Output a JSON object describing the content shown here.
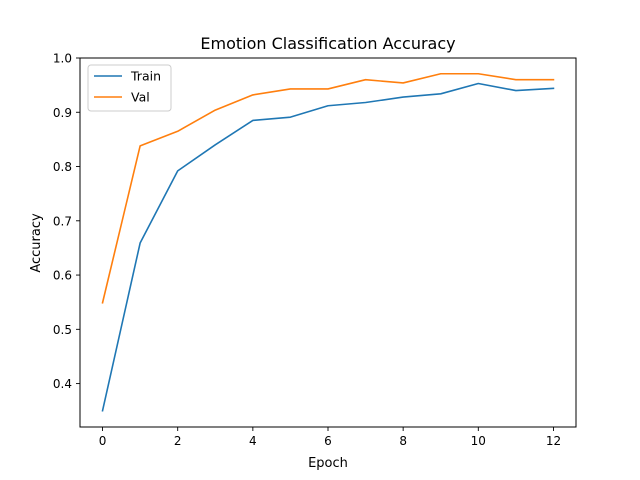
{
  "chart_data": {
    "type": "line",
    "title": "Emotion Classification Accuracy",
    "xlabel": "Epoch",
    "ylabel": "Accuracy",
    "xlim": [
      -0.6,
      12.6
    ],
    "ylim": [
      0.32,
      1.0
    ],
    "xticks": [
      0,
      2,
      4,
      6,
      8,
      10,
      12
    ],
    "yticks": [
      0.4,
      0.5,
      0.6,
      0.7,
      0.8,
      0.9,
      1.0
    ],
    "xtick_labels": [
      "0",
      "2",
      "4",
      "6",
      "8",
      "10",
      "12"
    ],
    "ytick_labels": [
      "0.4",
      "0.5",
      "0.6",
      "0.7",
      "0.8",
      "0.9",
      "1.0"
    ],
    "grid": false,
    "legend_position": "top-left",
    "x": [
      0,
      1,
      2,
      3,
      4,
      5,
      6,
      7,
      8,
      9,
      10,
      11,
      12
    ],
    "series": [
      {
        "name": "Train",
        "color": "#1f77b4",
        "values": [
          0.35,
          0.659,
          0.792,
          0.84,
          0.885,
          0.891,
          0.912,
          0.918,
          0.928,
          0.934,
          0.953,
          0.94,
          0.944
        ]
      },
      {
        "name": "Val",
        "color": "#ff7f0e",
        "values": [
          0.549,
          0.838,
          0.865,
          0.904,
          0.932,
          0.943,
          0.943,
          0.96,
          0.954,
          0.971,
          0.971,
          0.96,
          0.96
        ]
      }
    ]
  }
}
